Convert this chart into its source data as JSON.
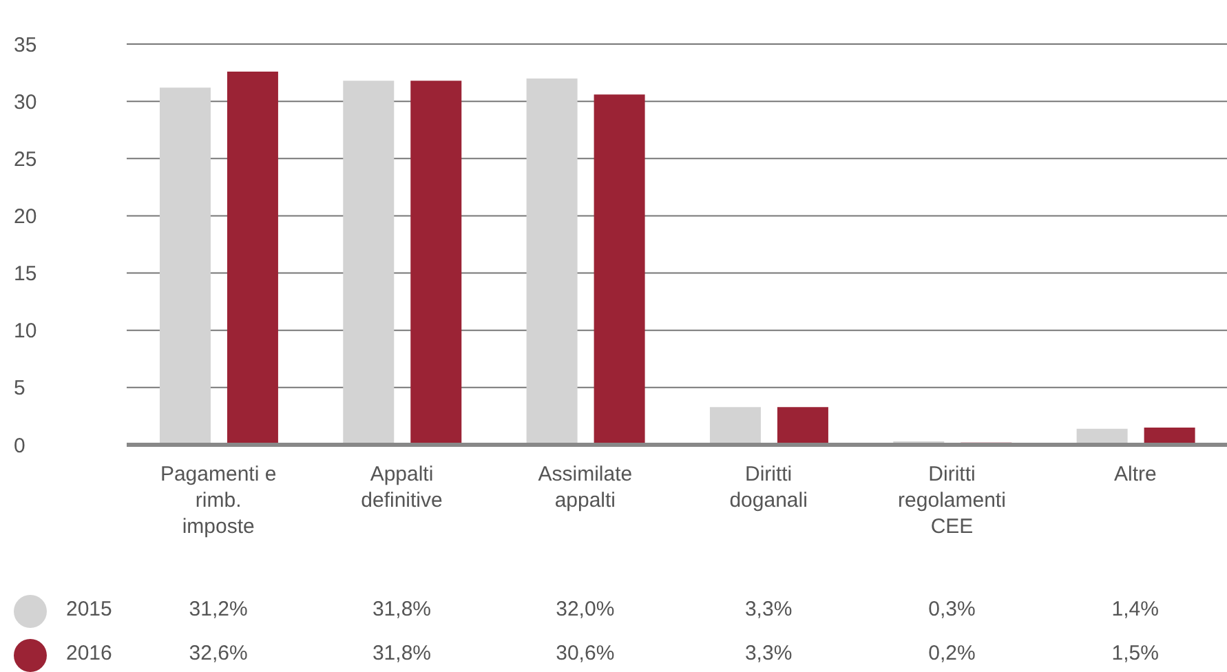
{
  "chart_data": {
    "type": "bar",
    "categories": [
      "Pagamenti e rimb. imposte",
      "Appalti definitive",
      "Assimilate appalti",
      "Diritti doganali",
      "Diritti regolamenti CEE",
      "Altre"
    ],
    "series": [
      {
        "name": "2015",
        "color": "#d3d3d3",
        "values": [
          31.2,
          31.8,
          32.0,
          3.3,
          0.3,
          1.4
        ],
        "value_labels": [
          "31,2%",
          "31,8%",
          "32,0%",
          "3,3%",
          "0,3%",
          "1,4%"
        ]
      },
      {
        "name": "2016",
        "color": "#9b2335",
        "values": [
          32.6,
          31.8,
          30.6,
          3.3,
          0.2,
          1.5
        ],
        "value_labels": [
          "32,6%",
          "31,8%",
          "30,6%",
          "3,3%",
          "0,2%",
          "1,5%"
        ]
      }
    ],
    "ylim": [
      0,
      35
    ],
    "yticks": [
      0,
      5,
      10,
      15,
      20,
      25,
      30,
      35
    ],
    "grid": "y",
    "legend": "bottom"
  }
}
